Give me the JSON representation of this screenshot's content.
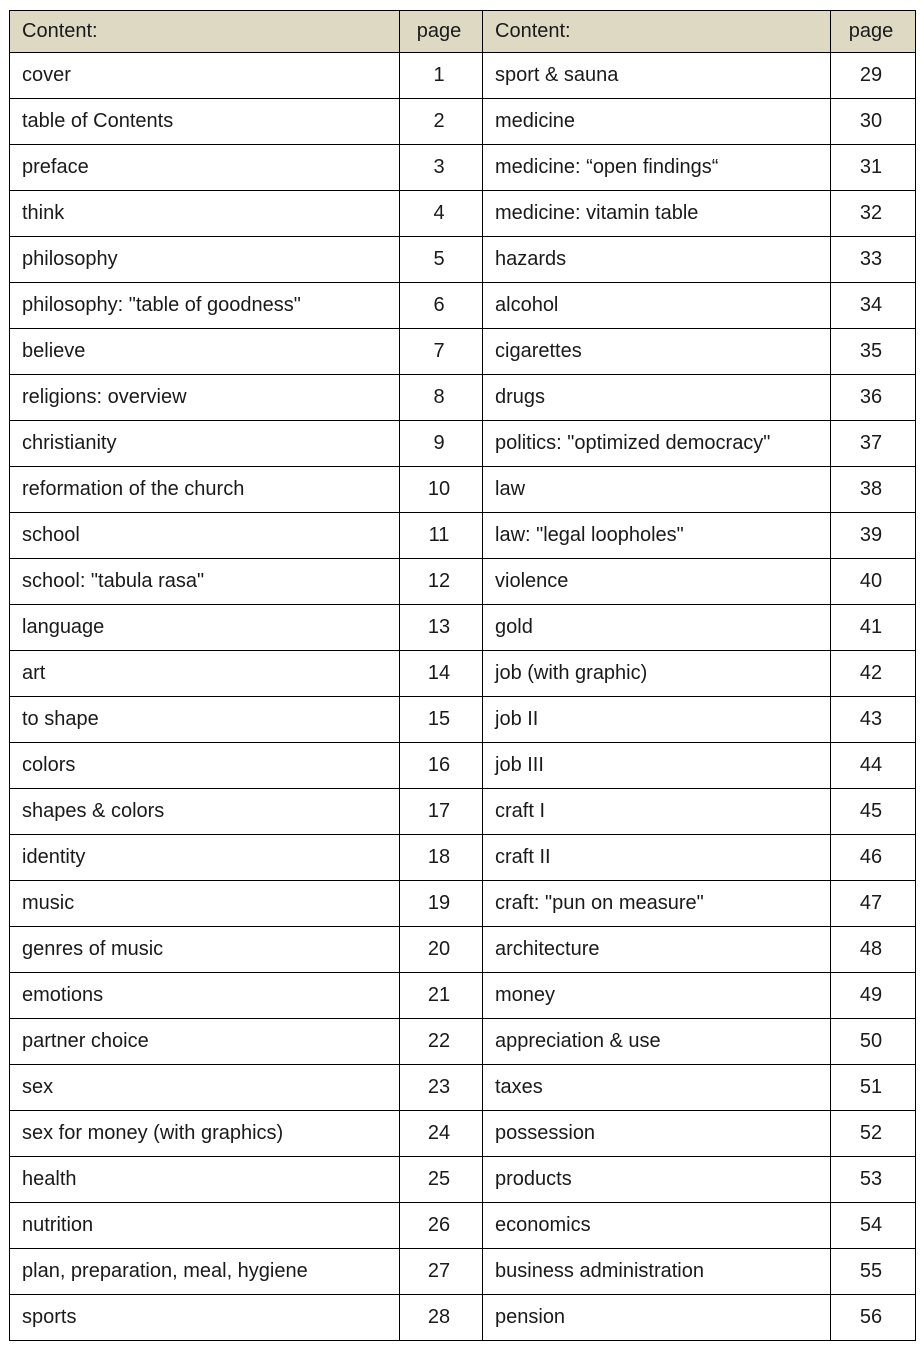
{
  "colors": {
    "header_bg": "#ddd9c3",
    "border": "#000000",
    "text": "#1a1a1a",
    "row_bg": "#ffffff"
  },
  "header": {
    "content_label": "Content:",
    "page_label": "page"
  },
  "rows": {
    "left": [
      {
        "title": "cover",
        "page": 1
      },
      {
        "title": "table of Contents",
        "page": 2
      },
      {
        "title": "preface",
        "page": 3
      },
      {
        "title": "think",
        "page": 4
      },
      {
        "title": "philosophy",
        "page": 5
      },
      {
        "title": "philosophy: \"table of goodness\"",
        "page": 6
      },
      {
        "title": "believe",
        "page": 7
      },
      {
        "title": "religions: overview",
        "page": 8
      },
      {
        "title": "christianity",
        "page": 9
      },
      {
        "title": "reformation of the church",
        "page": 10
      },
      {
        "title": "school",
        "page": 11
      },
      {
        "title": "school: \"tabula rasa\"",
        "page": 12
      },
      {
        "title": "language",
        "page": 13
      },
      {
        "title": "art",
        "page": 14
      },
      {
        "title": "to shape",
        "page": 15
      },
      {
        "title": "colors",
        "page": 16
      },
      {
        "title": "shapes & colors",
        "page": 17
      },
      {
        "title": "identity",
        "page": 18
      },
      {
        "title": "music",
        "page": 19
      },
      {
        "title": "genres of music",
        "page": 20
      },
      {
        "title": "emotions",
        "page": 21
      },
      {
        "title": "partner choice",
        "page": 22
      },
      {
        "title": "sex",
        "page": 23
      },
      {
        "title": "sex for money (with graphics)",
        "page": 24
      },
      {
        "title": "health",
        "page": 25
      },
      {
        "title": "nutrition",
        "page": 26
      },
      {
        "title": "plan, preparation, meal, hygiene",
        "page": 27
      },
      {
        "title": "sports",
        "page": 28
      }
    ],
    "right": [
      {
        "title": "sport & sauna",
        "page": 29
      },
      {
        "title": "medicine",
        "page": 30
      },
      {
        "title": "medicine: “open findings“",
        "page": 31
      },
      {
        "title": "medicine: vitamin table",
        "page": 32
      },
      {
        "title": "hazards",
        "page": 33
      },
      {
        "title": "alcohol",
        "page": 34
      },
      {
        "title": "cigarettes",
        "page": 35
      },
      {
        "title": "drugs",
        "page": 36
      },
      {
        "title": "politics: \"optimized democracy\"",
        "page": 37
      },
      {
        "title": "law",
        "page": 38
      },
      {
        "title": "law: \"legal loopholes\"",
        "page": 39
      },
      {
        "title": "violence",
        "page": 40
      },
      {
        "title": "gold",
        "page": 41
      },
      {
        "title": "job (with graphic)",
        "page": 42
      },
      {
        "title": "job II",
        "page": 43
      },
      {
        "title": "job III",
        "page": 44
      },
      {
        "title": "craft I",
        "page": 45
      },
      {
        "title": "craft II",
        "page": 46
      },
      {
        "title": "craft: \"pun on measure\"",
        "page": 47
      },
      {
        "title": "architecture",
        "page": 48
      },
      {
        "title": "money",
        "page": 49
      },
      {
        "title": "appreciation & use",
        "page": 50
      },
      {
        "title": "taxes",
        "page": 51
      },
      {
        "title": "possession",
        "page": 52
      },
      {
        "title": "products",
        "page": 53
      },
      {
        "title": "economics",
        "page": 54
      },
      {
        "title": "business administration",
        "page": 55
      },
      {
        "title": "pension",
        "page": 56
      }
    ]
  }
}
